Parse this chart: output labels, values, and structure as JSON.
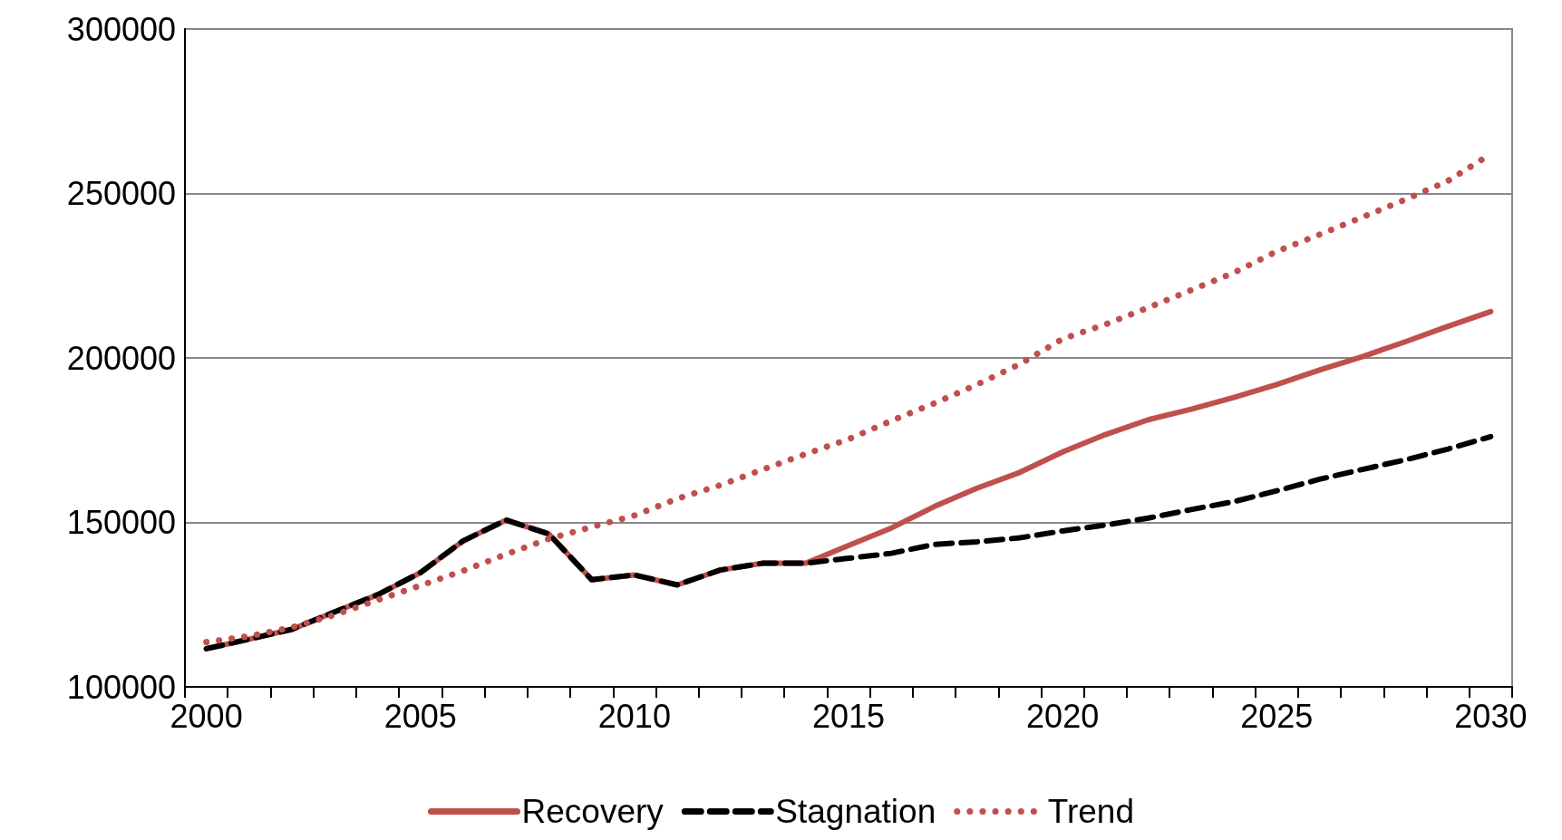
{
  "chart_data": {
    "type": "line",
    "categories": [
      "2000",
      null,
      null,
      null,
      null,
      "2005",
      null,
      null,
      null,
      null,
      "2010",
      null,
      null,
      null,
      null,
      "2015",
      null,
      null,
      null,
      null,
      "2020",
      null,
      null,
      null,
      null,
      "2025",
      null,
      null,
      null,
      null,
      "2030"
    ],
    "ylim": [
      100000,
      300000
    ],
    "yticks": [
      100000,
      150000,
      200000,
      250000,
      300000
    ],
    "grid": "y",
    "legend": "bottom",
    "marker": "none",
    "series": [
      {
        "name": "Recovery",
        "color": "#c0504d",
        "line_style": "solid",
        "values": [
          111600,
          114500,
          117500,
          122800,
          128000,
          134700,
          144400,
          150700,
          146500,
          132600,
          134000,
          131000,
          135500,
          137600,
          137600,
          143000,
          148300,
          154800,
          160400,
          165200,
          171400,
          176700,
          181200,
          184400,
          188000,
          191900,
          196300,
          200400,
          204900,
          209600,
          214100
        ]
      },
      {
        "name": "Stagnation",
        "color": "#000000",
        "line_style": "dashed",
        "values": [
          111600,
          114500,
          117500,
          122800,
          128000,
          134700,
          144400,
          150700,
          146500,
          132600,
          134000,
          131000,
          135500,
          137600,
          137600,
          139100,
          140600,
          143300,
          144100,
          145300,
          147400,
          149200,
          151300,
          153900,
          156300,
          159600,
          163100,
          166100,
          169000,
          172300,
          176100
        ]
      },
      {
        "name": "Trend",
        "color": "#c0504d",
        "line_style": "dotted",
        "values": [
          113600,
          115400,
          118100,
          121900,
          126400,
          130800,
          135300,
          140300,
          145000,
          148600,
          152100,
          157200,
          161300,
          166100,
          170800,
          175300,
          180900,
          186200,
          191900,
          198100,
          205800,
          210200,
          215300,
          220600,
          225900,
          232400,
          237500,
          242800,
          248100,
          253800,
          262000
        ]
      }
    ]
  }
}
